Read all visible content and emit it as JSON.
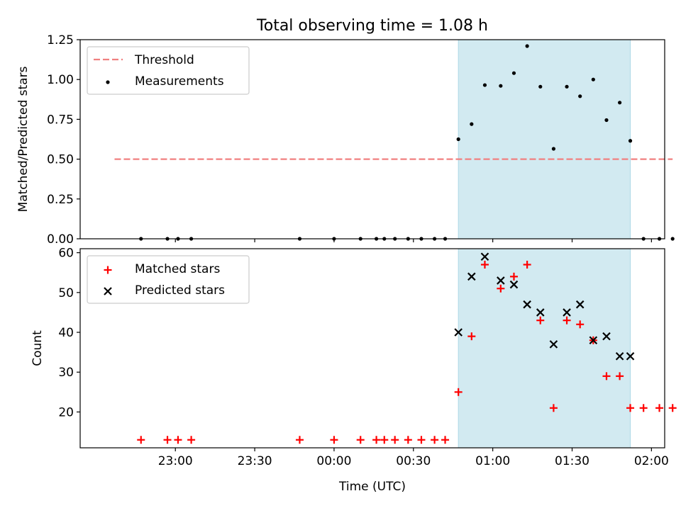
{
  "title": "Total observing time = 1.08 h",
  "chart_data": [
    {
      "type": "scatter",
      "panel": "top",
      "ylabel": "Matched/Predicted stars",
      "xlabel": "",
      "ylim": [
        0,
        1.25
      ],
      "yticks": [
        0,
        0.25,
        0.5,
        0.75,
        1.0,
        1.25
      ],
      "ytick_labels": [
        "0.00",
        "0.25",
        "0.50",
        "0.75",
        "1.00",
        "1.25"
      ],
      "legend": {
        "placement": "upper-left",
        "entries": [
          "Threshold",
          "Measurements"
        ]
      },
      "threshold": {
        "name": "Threshold",
        "y": 0.5,
        "x_start": "22:37",
        "x_end": "02:08",
        "color": "#f08080"
      },
      "highlight": {
        "x_start": "00:47",
        "x_end": "01:52",
        "color": "#add8e6"
      },
      "series": [
        {
          "name": "Measurements",
          "color": "#000000",
          "x": [
            "22:47",
            "22:57",
            "23:01",
            "23:06",
            "23:47",
            "00:00",
            "00:10",
            "00:16",
            "00:19",
            "00:23",
            "00:28",
            "00:33",
            "00:38",
            "00:42",
            "00:47",
            "00:52",
            "00:57",
            "01:03",
            "01:08",
            "01:13",
            "01:18",
            "01:23",
            "01:28",
            "01:33",
            "01:38",
            "01:43",
            "01:48",
            "01:52",
            "01:57",
            "02:03",
            "02:08"
          ],
          "y": [
            0,
            0,
            0,
            0,
            0,
            0,
            0,
            0,
            0,
            0,
            0,
            0,
            0,
            0,
            0.625,
            0.72,
            0.965,
            0.96,
            1.04,
            1.21,
            0.955,
            0.565,
            0.955,
            0.895,
            1.0,
            0.745,
            0.855,
            0.615,
            0,
            0,
            0
          ]
        }
      ]
    },
    {
      "type": "scatter",
      "panel": "bottom",
      "ylabel": "Count",
      "xlabel": "Time (UTC)",
      "ylim": [
        11,
        61
      ],
      "yticks": [
        20,
        30,
        40,
        50,
        60
      ],
      "ytick_labels": [
        "20",
        "30",
        "40",
        "50",
        "60"
      ],
      "xtick_values": [
        "23:00",
        "23:30",
        "00:00",
        "00:30",
        "01:00",
        "01:30",
        "02:00"
      ],
      "xtick_labels": [
        "23:00",
        "23:30",
        "00:00",
        "00:30",
        "01:00",
        "01:30",
        "02:00"
      ],
      "legend": {
        "placement": "upper-left",
        "entries": [
          "Matched stars",
          "Predicted stars"
        ]
      },
      "highlight": {
        "x_start": "00:47",
        "x_end": "01:52",
        "color": "#add8e6"
      },
      "series": [
        {
          "name": "Matched stars",
          "marker": "plus",
          "color": "#ff0000",
          "x": [
            "22:47",
            "22:57",
            "23:01",
            "23:06",
            "23:47",
            "00:00",
            "00:10",
            "00:16",
            "00:19",
            "00:23",
            "00:28",
            "00:33",
            "00:38",
            "00:42",
            "00:47",
            "00:52",
            "00:57",
            "01:03",
            "01:08",
            "01:13",
            "01:18",
            "01:23",
            "01:28",
            "01:33",
            "01:38",
            "01:43",
            "01:48",
            "01:52",
            "01:57",
            "02:03",
            "02:08"
          ],
          "y": [
            13,
            13,
            13,
            13,
            13,
            13,
            13,
            13,
            13,
            13,
            13,
            13,
            13,
            13,
            25,
            39,
            57,
            51,
            54,
            57,
            43,
            21,
            43,
            42,
            38,
            29,
            29,
            21,
            21,
            21,
            21
          ]
        },
        {
          "name": "Predicted stars",
          "marker": "x",
          "color": "#000000",
          "x": [
            "00:47",
            "00:52",
            "00:57",
            "01:03",
            "01:08",
            "01:13",
            "01:18",
            "01:23",
            "01:28",
            "01:33",
            "01:38",
            "01:43",
            "01:48",
            "01:52"
          ],
          "y": [
            40,
            54,
            59,
            53,
            52,
            47,
            45,
            37,
            45,
            47,
            38,
            39,
            34,
            34
          ]
        }
      ]
    }
  ]
}
